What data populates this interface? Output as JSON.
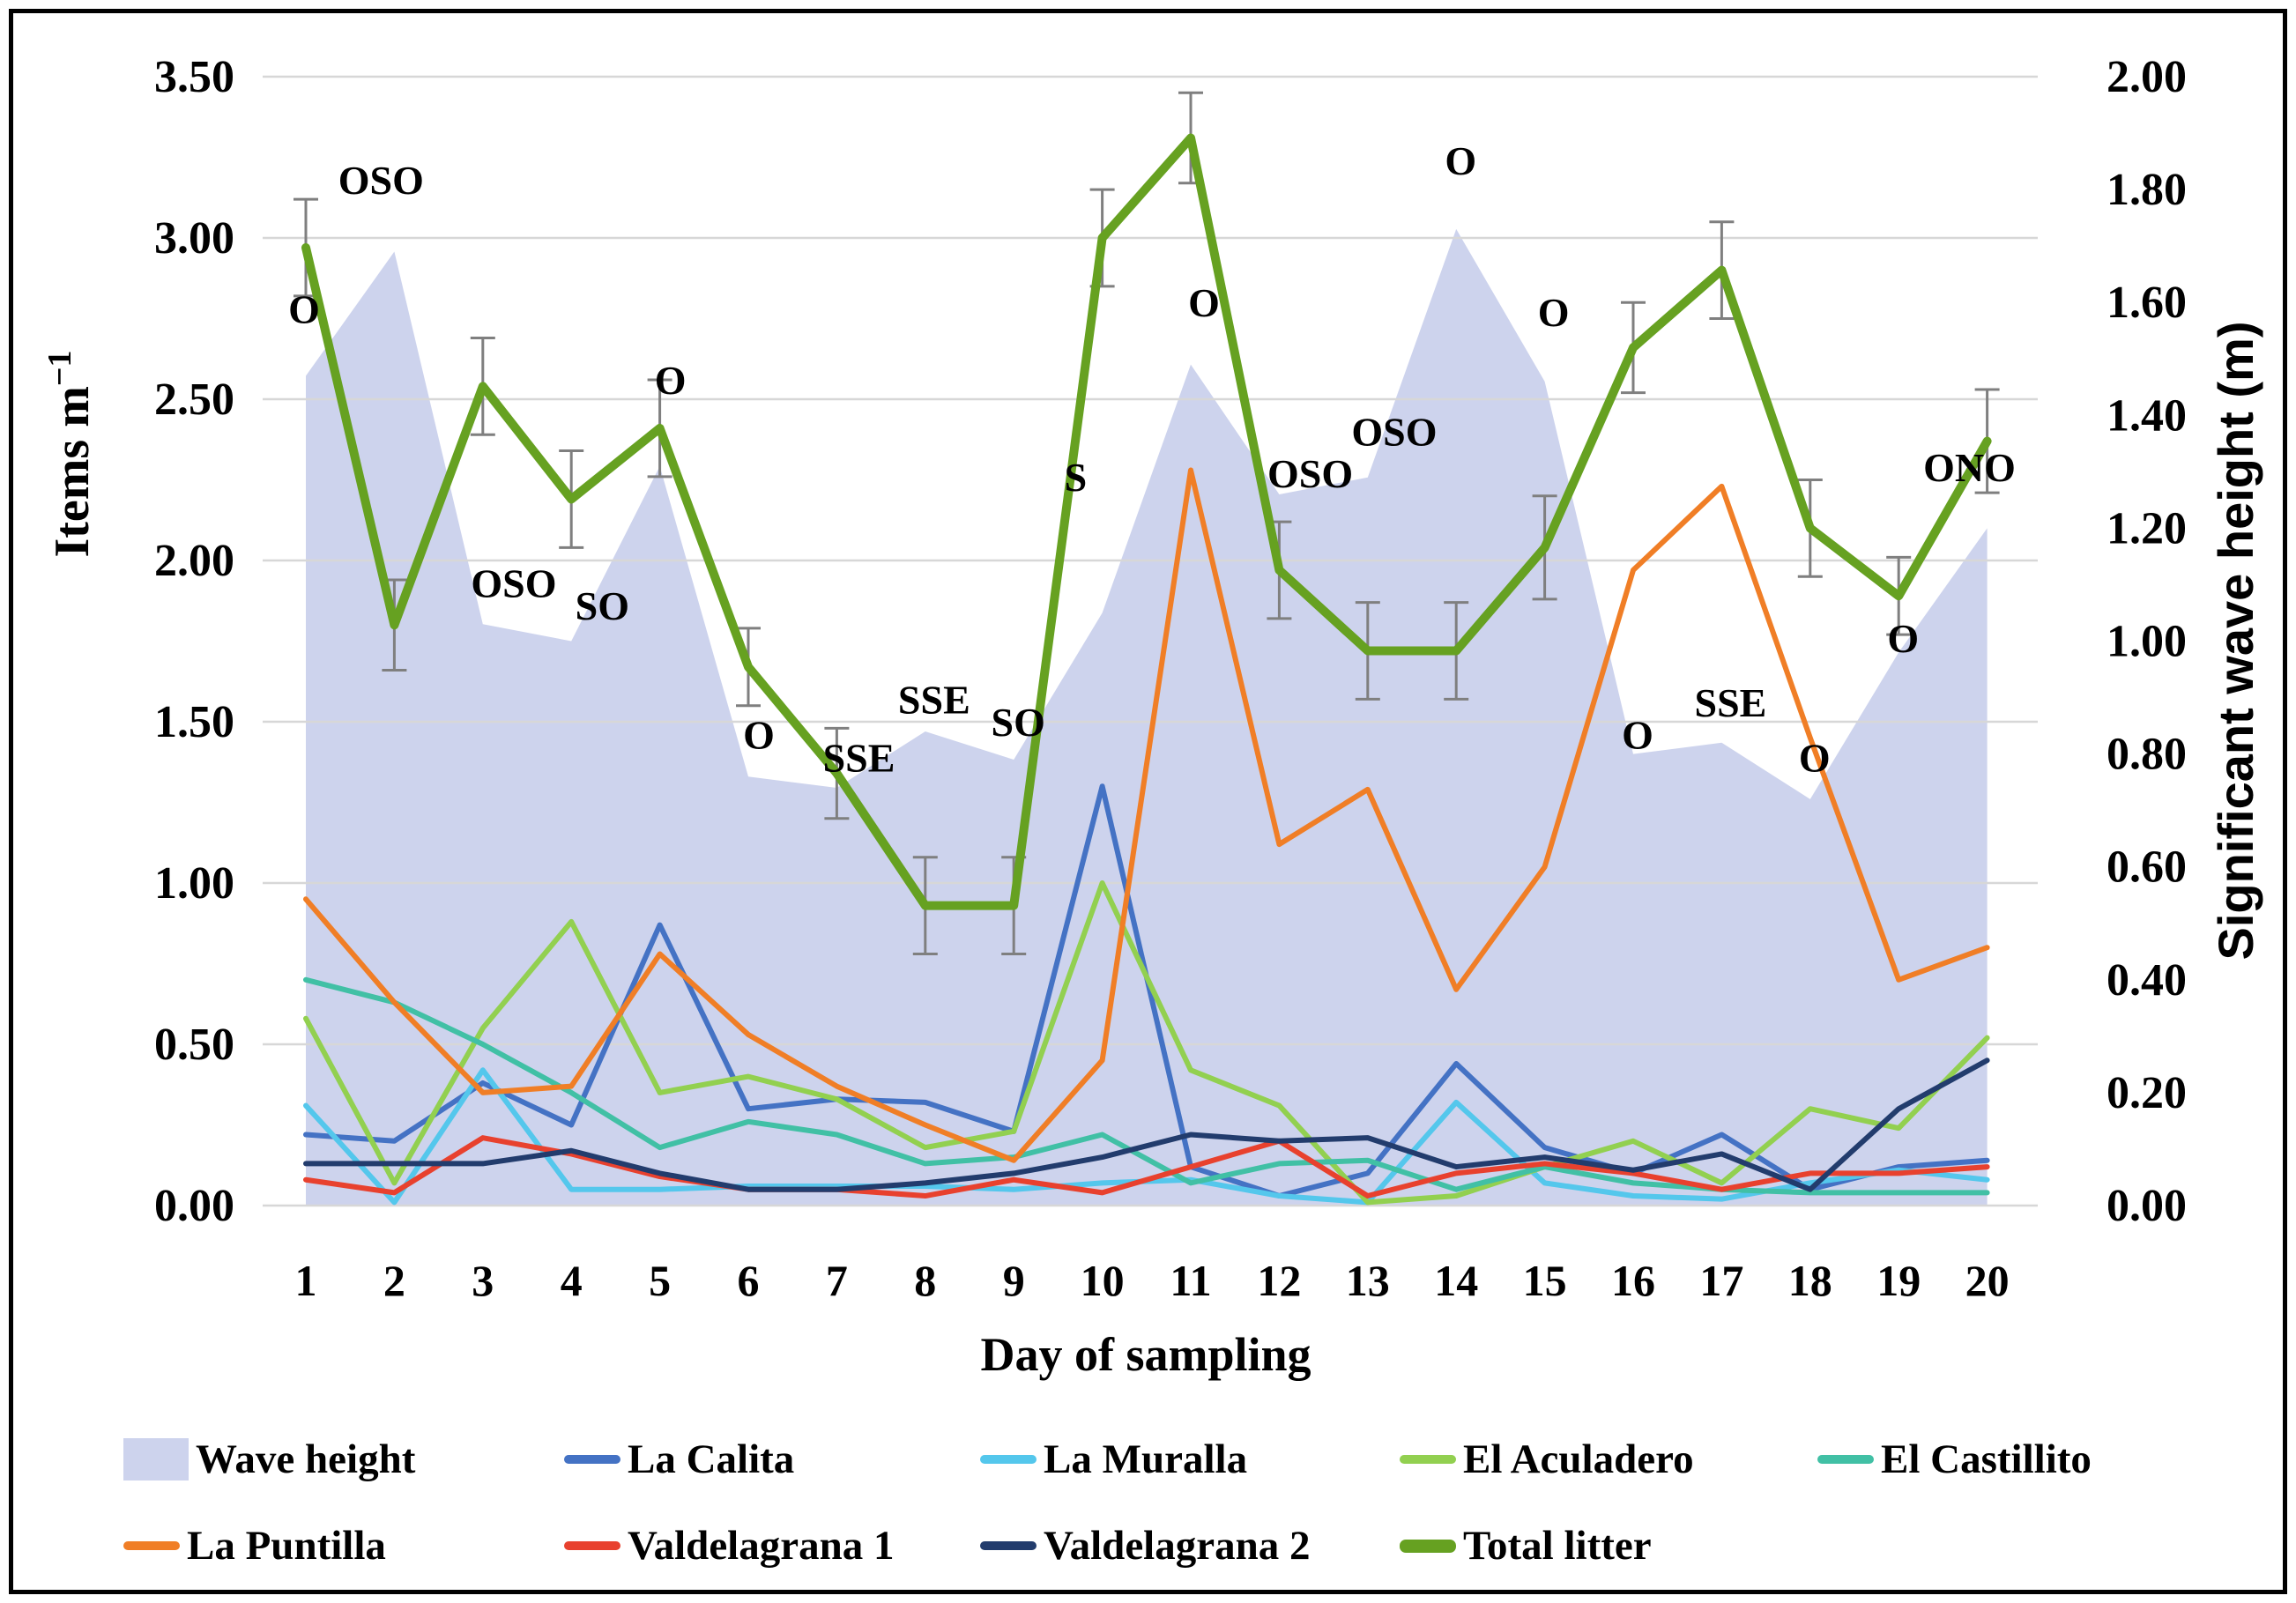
{
  "axes": {
    "left": {
      "title_main": "Items m",
      "title_sup": "−1",
      "ticks": [
        "0.00",
        "0.50",
        "1.00",
        "1.50",
        "2.00",
        "2.50",
        "3.00",
        "3.50"
      ],
      "tick_values": [
        0,
        0.5,
        1.0,
        1.5,
        2.0,
        2.5,
        3.0,
        3.5
      ]
    },
    "right": {
      "title": "Significant wave height (m)",
      "ticks": [
        "0.00",
        "0.20",
        "0.40",
        "0.60",
        "0.80",
        "1.00",
        "1.20",
        "1.40",
        "1.60",
        "1.80",
        "2.00"
      ],
      "tick_values": [
        0,
        0.2,
        0.4,
        0.6,
        0.8,
        1.0,
        1.2,
        1.4,
        1.6,
        1.8,
        2.0
      ]
    },
    "x": {
      "title": "Day of sampling",
      "ticks": [
        "1",
        "2",
        "3",
        "4",
        "5",
        "6",
        "7",
        "8",
        "9",
        "10",
        "11",
        "12",
        "13",
        "14",
        "15",
        "16",
        "17",
        "18",
        "19",
        "20"
      ]
    }
  },
  "chart_data": {
    "type": "combo-area-line",
    "x": [
      1,
      2,
      3,
      4,
      5,
      6,
      7,
      8,
      9,
      10,
      11,
      12,
      13,
      14,
      15,
      16,
      17,
      18,
      19,
      20
    ],
    "xlabel": "Day of sampling",
    "ylabel_left": "Items m^-1",
    "ylabel_right": "Significant wave height (m)",
    "ylim_left": [
      0,
      3.5
    ],
    "ylim_right": [
      0,
      2.0
    ],
    "grid": true,
    "legend_position": "bottom",
    "colors": {
      "gridline": "#D7D7D7",
      "error_bar": "#7F7F7F",
      "text": "#000000"
    },
    "series": [
      {
        "name": "Wave height",
        "type": "area",
        "axis": "right",
        "color": "#CDD3ED",
        "values": [
          1.47,
          1.69,
          1.03,
          1.0,
          1.31,
          0.76,
          0.74,
          0.84,
          0.79,
          1.05,
          1.49,
          1.26,
          1.29,
          1.73,
          1.46,
          0.8,
          0.82,
          0.72,
          0.98,
          1.2
        ]
      },
      {
        "name": "La Calita",
        "type": "line",
        "axis": "left",
        "color": "#4472C4",
        "values": [
          0.22,
          0.2,
          0.38,
          0.25,
          0.87,
          0.3,
          0.33,
          0.32,
          0.23,
          1.3,
          0.12,
          0.03,
          0.1,
          0.44,
          0.18,
          0.1,
          0.22,
          0.05,
          0.12,
          0.14
        ]
      },
      {
        "name": "La Muralla",
        "type": "line",
        "axis": "left",
        "color": "#54C7EC",
        "values": [
          0.31,
          0.01,
          0.42,
          0.05,
          0.05,
          0.06,
          0.06,
          0.06,
          0.05,
          0.07,
          0.08,
          0.03,
          0.01,
          0.32,
          0.07,
          0.03,
          0.02,
          0.07,
          0.11,
          0.08
        ]
      },
      {
        "name": "El Aculadero",
        "type": "line",
        "axis": "left",
        "color": "#92D050",
        "values": [
          0.58,
          0.07,
          0.55,
          0.88,
          0.35,
          0.4,
          0.33,
          0.18,
          0.23,
          1.0,
          0.42,
          0.31,
          0.01,
          0.03,
          0.12,
          0.2,
          0.07,
          0.3,
          0.24,
          0.52
        ]
      },
      {
        "name": "El Castillito",
        "type": "line",
        "axis": "left",
        "color": "#41C0A5",
        "values": [
          0.7,
          0.63,
          0.5,
          0.35,
          0.18,
          0.26,
          0.22,
          0.13,
          0.15,
          0.22,
          0.07,
          0.13,
          0.14,
          0.05,
          0.12,
          0.07,
          0.05,
          0.04,
          0.04,
          0.04
        ]
      },
      {
        "name": "La Puntilla",
        "type": "line",
        "axis": "left",
        "color": "#F07E26",
        "values": [
          0.95,
          0.63,
          0.35,
          0.37,
          0.78,
          0.53,
          0.37,
          0.25,
          0.14,
          0.45,
          2.28,
          1.12,
          1.29,
          0.67,
          1.05,
          1.97,
          2.23,
          1.45,
          0.7,
          0.8
        ]
      },
      {
        "name": "Valdelagrana 1",
        "type": "line",
        "axis": "left",
        "color": "#E8412E",
        "values": [
          0.08,
          0.04,
          0.21,
          0.16,
          0.09,
          0.05,
          0.05,
          0.03,
          0.08,
          0.04,
          0.12,
          0.2,
          0.03,
          0.1,
          0.13,
          0.1,
          0.05,
          0.1,
          0.1,
          0.12
        ]
      },
      {
        "name": "Valdelagrana 2",
        "type": "line",
        "axis": "left",
        "color": "#223C6D",
        "values": [
          0.13,
          0.13,
          0.13,
          0.17,
          0.1,
          0.05,
          0.05,
          0.07,
          0.1,
          0.15,
          0.22,
          0.2,
          0.21,
          0.12,
          0.15,
          0.11,
          0.16,
          0.05,
          0.3,
          0.45
        ]
      },
      {
        "name": "Total litter",
        "type": "line-bold",
        "axis": "left",
        "color": "#66A121",
        "values": [
          2.97,
          1.8,
          2.54,
          2.19,
          2.41,
          1.67,
          1.34,
          0.93,
          0.93,
          3.0,
          3.31,
          1.97,
          1.72,
          1.72,
          2.04,
          2.66,
          2.9,
          2.1,
          1.89,
          2.37
        ],
        "error": [
          0.15,
          0.14,
          0.15,
          0.15,
          0.15,
          0.12,
          0.14,
          0.15,
          0.15,
          0.15,
          0.14,
          0.15,
          0.15,
          0.15,
          0.16,
          0.14,
          0.15,
          0.15,
          0.12,
          0.16
        ]
      }
    ],
    "wind_labels": [
      {
        "day": 0.98,
        "value": 2.78,
        "text": "O"
      },
      {
        "day": 1.85,
        "value": 3.18,
        "text": "OSO"
      },
      {
        "day": 3.35,
        "value": 1.93,
        "text": "OSO"
      },
      {
        "day": 4.35,
        "value": 1.86,
        "text": "SO"
      },
      {
        "day": 5.12,
        "value": 2.56,
        "text": "O"
      },
      {
        "day": 6.12,
        "value": 1.46,
        "text": "O"
      },
      {
        "day": 7.25,
        "value": 1.39,
        "text": "SSE"
      },
      {
        "day": 8.1,
        "value": 1.57,
        "text": "SSE"
      },
      {
        "day": 9.05,
        "value": 1.5,
        "text": "SO"
      },
      {
        "day": 9.7,
        "value": 2.26,
        "text": "S"
      },
      {
        "day": 11.15,
        "value": 2.8,
        "text": "O"
      },
      {
        "day": 12.35,
        "value": 2.27,
        "text": "OSO"
      },
      {
        "day": 13.3,
        "value": 2.4,
        "text": "OSO"
      },
      {
        "day": 14.05,
        "value": 3.24,
        "text": "O"
      },
      {
        "day": 15.1,
        "value": 2.77,
        "text": "O"
      },
      {
        "day": 16.05,
        "value": 1.46,
        "text": "O"
      },
      {
        "day": 17.1,
        "value": 1.56,
        "text": "SSE"
      },
      {
        "day": 18.05,
        "value": 1.39,
        "text": "O"
      },
      {
        "day": 19.05,
        "value": 1.76,
        "text": "O"
      },
      {
        "day": 19.8,
        "value": 2.29,
        "text": "ONO"
      }
    ]
  },
  "legend": {
    "row1": [
      "Wave height",
      "La Calita",
      "La Muralla",
      "El Aculadero",
      "El Castillito"
    ],
    "row2": [
      "La Puntilla",
      "Valdelagrana 1",
      "Valdelagrana 2",
      "Total litter"
    ]
  }
}
